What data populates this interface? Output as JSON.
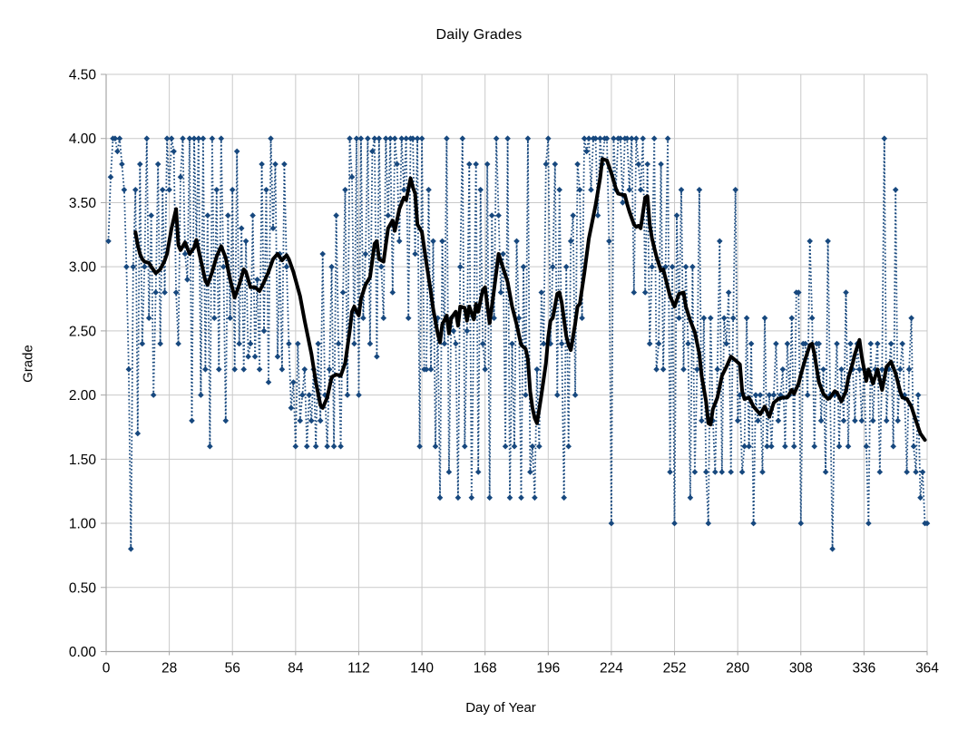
{
  "colors": {
    "daily_series": "#17487e",
    "moving_average": "#000000",
    "gridline": "#c9c9c9",
    "axis": "#a6a6a6",
    "text": "#000000",
    "background": "#ffffff"
  },
  "chart_data": {
    "type": "line",
    "title": "Daily Grades",
    "xlabel": "Day of Year",
    "ylabel": "Grade",
    "xlim": [
      0,
      364
    ],
    "ylim": [
      0,
      4.5
    ],
    "grid": true,
    "legend": "none",
    "x_ticks": [
      0,
      28,
      56,
      84,
      112,
      140,
      168,
      196,
      224,
      252,
      280,
      308,
      336,
      364
    ],
    "y_ticks": [
      0,
      0.5,
      1,
      1.5,
      2,
      2.5,
      3,
      3.5,
      4,
      4.5
    ],
    "y_tick_labels": [
      "0.00",
      "0.50",
      "1.00",
      "1.50",
      "2.00",
      "2.50",
      "3.00",
      "3.50",
      "4.00",
      "4.50"
    ],
    "series": [
      {
        "name": "daily grades",
        "style": "dotted-with-diamond-markers",
        "start_day": 1,
        "values": [
          3.2,
          3.7,
          4.0,
          4.0,
          3.9,
          4.0,
          3.8,
          3.6,
          3.0,
          2.2,
          0.8,
          3.0,
          3.6,
          1.7,
          3.8,
          2.4,
          3.0,
          4.0,
          2.6,
          3.4,
          2.0,
          2.8,
          3.8,
          2.4,
          3.6,
          2.8,
          4.0,
          3.6,
          4.0,
          3.9,
          2.8,
          2.4,
          3.7,
          4.0,
          3.1,
          2.9,
          4.0,
          1.8,
          4.0,
          3.2,
          4.0,
          2.0,
          4.0,
          2.2,
          3.4,
          1.6,
          4.0,
          2.6,
          3.6,
          2.2,
          4.0,
          3.0,
          1.8,
          3.4,
          2.6,
          3.6,
          2.2,
          3.9,
          2.4,
          3.3,
          2.2,
          3.2,
          2.3,
          2.4,
          3.4,
          2.3,
          2.9,
          2.2,
          3.8,
          2.5,
          3.6,
          2.1,
          4.0,
          3.3,
          3.8,
          2.3,
          3.1,
          2.2,
          3.8,
          3.0,
          2.4,
          1.9,
          2.1,
          1.6,
          2.4,
          1.8,
          2.0,
          2.2,
          1.6,
          2.0,
          1.8,
          2.2,
          1.6,
          2.4,
          1.8,
          3.1,
          2.0,
          1.6,
          2.2,
          3.0,
          1.6,
          3.4,
          2.4,
          1.6,
          2.8,
          3.6,
          2.0,
          4.0,
          3.7,
          2.4,
          4.0,
          2.0,
          4.0,
          2.6,
          3.1,
          4.0,
          2.4,
          3.9,
          4.0,
          2.3,
          4.0,
          3.0,
          2.6,
          4.0,
          3.4,
          4.0,
          2.8,
          4.0,
          3.8,
          3.2,
          4.0,
          3.6,
          4.0,
          2.6,
          4.0,
          4.0,
          3.1,
          4.0,
          1.6,
          4.0,
          2.2,
          2.2,
          3.6,
          2.2,
          3.2,
          1.6,
          2.6,
          1.2,
          3.2,
          2.4,
          4.0,
          1.4,
          2.6,
          2.5,
          2.4,
          1.2,
          3.0,
          4.0,
          1.6,
          2.5,
          3.8,
          1.2,
          2.6,
          3.8,
          1.4,
          3.6,
          2.4,
          2.2,
          3.8,
          1.2,
          3.4,
          2.6,
          4.0,
          3.4,
          2.8,
          3.1,
          1.6,
          4.0,
          1.2,
          2.4,
          1.6,
          3.2,
          2.6,
          1.2,
          3.0,
          2.0,
          4.0,
          1.4,
          1.6,
          1.2,
          2.2,
          1.6,
          2.8,
          2.4,
          3.8,
          4.0,
          2.4,
          3.0,
          3.8,
          2.0,
          3.6,
          2.4,
          1.2,
          3.0,
          1.6,
          3.2,
          3.4,
          2.0,
          3.8,
          3.6,
          2.6,
          4.0,
          3.9,
          4.0,
          3.6,
          4.0,
          4.0,
          3.4,
          4.0,
          3.8,
          4.0,
          4.0,
          3.2,
          1.0,
          4.0,
          3.6,
          4.0,
          4.0,
          3.5,
          4.0,
          4.0,
          3.6,
          4.0,
          2.8,
          4.0,
          3.8,
          3.6,
          4.0,
          2.8,
          3.8,
          2.4,
          3.0,
          4.0,
          2.2,
          2.4,
          3.8,
          2.2,
          3.0,
          4.0,
          1.4,
          3.0,
          1.0,
          3.4,
          2.6,
          3.6,
          2.2,
          3.0,
          2.4,
          1.2,
          3.0,
          1.4,
          2.2,
          3.6,
          1.8,
          2.6,
          1.4,
          1.0,
          2.6,
          1.8,
          1.4,
          2.2,
          3.2,
          1.4,
          2.6,
          2.4,
          2.8,
          1.4,
          2.6,
          3.6,
          1.8,
          2.0,
          1.4,
          1.6,
          2.6,
          1.6,
          2.4,
          1.0,
          2.0,
          1.8,
          2.0,
          1.4,
          2.6,
          1.6,
          2.0,
          1.6,
          2.0,
          2.4,
          1.8,
          2.0,
          2.2,
          1.6,
          2.4,
          2.0,
          2.6,
          1.6,
          2.8,
          2.8,
          1.0,
          2.4,
          2.4,
          2.0,
          3.2,
          2.6,
          1.6,
          2.4,
          2.4,
          1.8,
          2.2,
          1.4,
          3.2,
          2.0,
          0.8,
          2.0,
          2.4,
          1.6,
          2.2,
          1.8,
          2.8,
          1.6,
          2.4,
          2.2,
          1.8,
          2.4,
          2.2,
          1.8,
          2.2,
          1.6,
          1.0,
          2.4,
          1.8,
          2.2,
          2.4,
          1.4,
          2.2,
          4.0,
          1.8,
          2.2,
          2.4,
          1.6,
          3.6,
          1.8,
          2.2,
          2.4,
          2.0,
          1.4,
          2.2,
          2.6,
          1.6,
          1.4,
          2.0,
          1.2,
          1.4,
          1.0,
          1.0
        ]
      },
      {
        "name": "moving average",
        "style": "solid",
        "points": [
          [
            13,
            3.27
          ],
          [
            14,
            3.17
          ],
          [
            15,
            3.1
          ],
          [
            16,
            3.06
          ],
          [
            17,
            3.04
          ],
          [
            19,
            3.03
          ],
          [
            20,
            3.0
          ],
          [
            22,
            2.95
          ],
          [
            24,
            2.98
          ],
          [
            26,
            3.05
          ],
          [
            27,
            3.1
          ],
          [
            29,
            3.3
          ],
          [
            31,
            3.45
          ],
          [
            32,
            3.17
          ],
          [
            33,
            3.13
          ],
          [
            35,
            3.19
          ],
          [
            37,
            3.1
          ],
          [
            39,
            3.15
          ],
          [
            40,
            3.21
          ],
          [
            42,
            3.05
          ],
          [
            44,
            2.89
          ],
          [
            45,
            2.86
          ],
          [
            47,
            2.96
          ],
          [
            49,
            3.08
          ],
          [
            51,
            3.16
          ],
          [
            53,
            3.07
          ],
          [
            55,
            2.9
          ],
          [
            57,
            2.76
          ],
          [
            59,
            2.86
          ],
          [
            61,
            2.98
          ],
          [
            62,
            2.96
          ],
          [
            64,
            2.84
          ],
          [
            66,
            2.84
          ],
          [
            68,
            2.81
          ],
          [
            70,
            2.88
          ],
          [
            72,
            2.96
          ],
          [
            74,
            3.06
          ],
          [
            76,
            3.1
          ],
          [
            78,
            3.05
          ],
          [
            80,
            3.09
          ],
          [
            81,
            3.06
          ],
          [
            83,
            2.96
          ],
          [
            86,
            2.77
          ],
          [
            88,
            2.58
          ],
          [
            91,
            2.32
          ],
          [
            93,
            2.1
          ],
          [
            95,
            1.92
          ],
          [
            96,
            1.9
          ],
          [
            98,
            1.98
          ],
          [
            100,
            2.14
          ],
          [
            102,
            2.16
          ],
          [
            104,
            2.15
          ],
          [
            106,
            2.25
          ],
          [
            108,
            2.5
          ],
          [
            109,
            2.65
          ],
          [
            110,
            2.69
          ],
          [
            111,
            2.65
          ],
          [
            112,
            2.62
          ],
          [
            113,
            2.75
          ],
          [
            115,
            2.86
          ],
          [
            117,
            2.92
          ],
          [
            119,
            3.18
          ],
          [
            120,
            3.2
          ],
          [
            121,
            3.06
          ],
          [
            123,
            3.04
          ],
          [
            125,
            3.3
          ],
          [
            127,
            3.36
          ],
          [
            128,
            3.28
          ],
          [
            130,
            3.45
          ],
          [
            132,
            3.54
          ],
          [
            133,
            3.52
          ],
          [
            135,
            3.69
          ],
          [
            136,
            3.62
          ],
          [
            137,
            3.57
          ],
          [
            138,
            3.33
          ],
          [
            140,
            3.27
          ],
          [
            142,
            3.03
          ],
          [
            144,
            2.8
          ],
          [
            145,
            2.67
          ],
          [
            147,
            2.48
          ],
          [
            148,
            2.41
          ],
          [
            149,
            2.55
          ],
          [
            151,
            2.62
          ],
          [
            152,
            2.48
          ],
          [
            153,
            2.6
          ],
          [
            155,
            2.65
          ],
          [
            156,
            2.54
          ],
          [
            157,
            2.69
          ],
          [
            159,
            2.68
          ],
          [
            160,
            2.58
          ],
          [
            161,
            2.69
          ],
          [
            163,
            2.59
          ],
          [
            164,
            2.71
          ],
          [
            165,
            2.65
          ],
          [
            167,
            2.82
          ],
          [
            168,
            2.84
          ],
          [
            170,
            2.56
          ],
          [
            172,
            2.82
          ],
          [
            174,
            3.1
          ],
          [
            176,
            2.99
          ],
          [
            178,
            2.88
          ],
          [
            180,
            2.69
          ],
          [
            182,
            2.55
          ],
          [
            184,
            2.39
          ],
          [
            186,
            2.36
          ],
          [
            187,
            2.28
          ],
          [
            188,
            2.03
          ],
          [
            189,
            1.9
          ],
          [
            190,
            1.82
          ],
          [
            191,
            1.78
          ],
          [
            192,
            1.89
          ],
          [
            193,
            2.0
          ],
          [
            195,
            2.25
          ],
          [
            196,
            2.45
          ],
          [
            197,
            2.58
          ],
          [
            198,
            2.6
          ],
          [
            200,
            2.79
          ],
          [
            201,
            2.8
          ],
          [
            202,
            2.72
          ],
          [
            204,
            2.46
          ],
          [
            205,
            2.39
          ],
          [
            206,
            2.35
          ],
          [
            208,
            2.56
          ],
          [
            209,
            2.69
          ],
          [
            210,
            2.71
          ],
          [
            212,
            2.95
          ],
          [
            214,
            3.22
          ],
          [
            217,
            3.48
          ],
          [
            219,
            3.69
          ],
          [
            220,
            3.84
          ],
          [
            222,
            3.83
          ],
          [
            223,
            3.78
          ],
          [
            224,
            3.73
          ],
          [
            226,
            3.61
          ],
          [
            227,
            3.57
          ],
          [
            229,
            3.56
          ],
          [
            230,
            3.56
          ],
          [
            231,
            3.49
          ],
          [
            232,
            3.43
          ],
          [
            234,
            3.33
          ],
          [
            235,
            3.31
          ],
          [
            236,
            3.32
          ],
          [
            237,
            3.3
          ],
          [
            239,
            3.54
          ],
          [
            240,
            3.55
          ],
          [
            241,
            3.33
          ],
          [
            242,
            3.22
          ],
          [
            244,
            3.08
          ],
          [
            246,
            2.97
          ],
          [
            247,
            2.98
          ],
          [
            248,
            2.91
          ],
          [
            250,
            2.77
          ],
          [
            252,
            2.69
          ],
          [
            254,
            2.79
          ],
          [
            256,
            2.8
          ],
          [
            257,
            2.69
          ],
          [
            259,
            2.58
          ],
          [
            261,
            2.49
          ],
          [
            263,
            2.32
          ],
          [
            264,
            2.15
          ],
          [
            266,
            1.95
          ],
          [
            267,
            1.78
          ],
          [
            268,
            1.77
          ],
          [
            269,
            1.89
          ],
          [
            271,
            1.98
          ],
          [
            273,
            2.15
          ],
          [
            275,
            2.22
          ],
          [
            277,
            2.3
          ],
          [
            279,
            2.27
          ],
          [
            281,
            2.24
          ],
          [
            282,
            2.03
          ],
          [
            283,
            1.97
          ],
          [
            285,
            1.98
          ],
          [
            287,
            1.91
          ],
          [
            289,
            1.87
          ],
          [
            290,
            1.85
          ],
          [
            292,
            1.91
          ],
          [
            294,
            1.83
          ],
          [
            296,
            1.94
          ],
          [
            298,
            1.97
          ],
          [
            300,
            1.98
          ],
          [
            302,
            1.98
          ],
          [
            304,
            2.04
          ],
          [
            305,
            2.01
          ],
          [
            307,
            2.09
          ],
          [
            308,
            2.16
          ],
          [
            310,
            2.28
          ],
          [
            312,
            2.39
          ],
          [
            313,
            2.4
          ],
          [
            314,
            2.32
          ],
          [
            316,
            2.1
          ],
          [
            318,
            2.01
          ],
          [
            320,
            1.97
          ],
          [
            321,
            1.98
          ],
          [
            323,
            2.03
          ],
          [
            324,
            2.02
          ],
          [
            326,
            1.95
          ],
          [
            328,
            2.03
          ],
          [
            329,
            2.13
          ],
          [
            331,
            2.25
          ],
          [
            332,
            2.32
          ],
          [
            334,
            2.43
          ],
          [
            335,
            2.3
          ],
          [
            337,
            2.11
          ],
          [
            338,
            2.2
          ],
          [
            340,
            2.09
          ],
          [
            342,
            2.2
          ],
          [
            344,
            2.04
          ],
          [
            346,
            2.22
          ],
          [
            348,
            2.26
          ],
          [
            350,
            2.17
          ],
          [
            352,
            2.03
          ],
          [
            353,
            1.98
          ],
          [
            355,
            1.97
          ],
          [
            357,
            1.91
          ],
          [
            359,
            1.8
          ],
          [
            361,
            1.7
          ],
          [
            363,
            1.65
          ]
        ]
      }
    ]
  }
}
